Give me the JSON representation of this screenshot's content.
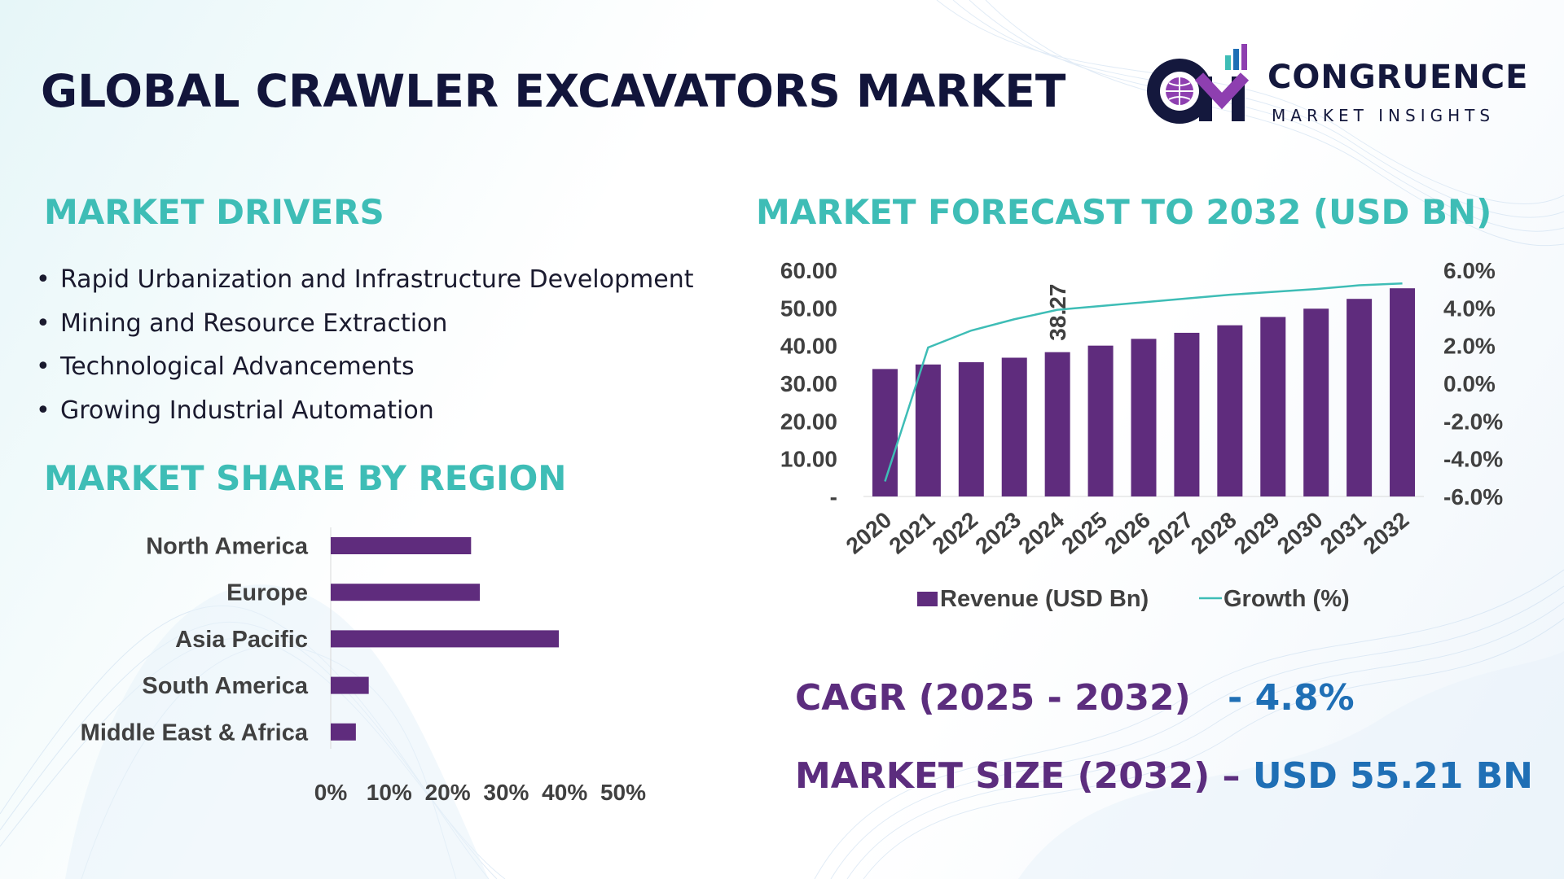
{
  "header": {
    "title": "GLOBAL CRAWLER EXCAVATORS MARKET"
  },
  "logo": {
    "name": "CONGRUENCE",
    "tagline": "MARKET INSIGHTS",
    "monogram": "CM"
  },
  "drivers": {
    "heading": "MARKET DRIVERS",
    "bullet": "•",
    "items": [
      "Rapid Urbanization and Infrastructure Development",
      "Mining and Resource Extraction",
      "Technological Advancements",
      "Growing Industrial Automation"
    ]
  },
  "region": {
    "heading": "MARKET SHARE BY REGION"
  },
  "forecast": {
    "heading": "MARKET FORECAST TO 2032 (USD BN)"
  },
  "stats": {
    "cagr_label": "CAGR (2025 - 2032)",
    "cagr_value": "- 4.8%",
    "size_label": "MARKET SIZE (2032) –",
    "size_value": "USD 55.21 BN"
  },
  "colors": {
    "bar": "#5f2c7d",
    "line": "#3ebdb6",
    "heading": "#3ebdb6",
    "title": "#12153b",
    "value": "#1f6fb5"
  },
  "chart_data": [
    {
      "type": "bar",
      "orientation": "horizontal",
      "categories": [
        "North America",
        "Europe",
        "Asia Pacific",
        "South America",
        "Middle East & Africa"
      ],
      "values": [
        24,
        25.5,
        39,
        6.5,
        4.3
      ],
      "xlim": [
        0,
        50
      ],
      "xticks": [
        "0%",
        "10%",
        "20%",
        "30%",
        "40%",
        "50%"
      ],
      "grid": false
    },
    {
      "type": "bar",
      "categories": [
        "2020",
        "2021",
        "2022",
        "2023",
        "2024",
        "2025",
        "2026",
        "2027",
        "2028",
        "2029",
        "2030",
        "2031",
        "2032"
      ],
      "series": [
        {
          "name": "Revenue (USD Bn)",
          "type": "bar",
          "axis": "left",
          "values": [
            33.8,
            35.0,
            35.6,
            36.8,
            38.27,
            40.0,
            41.8,
            43.4,
            45.4,
            47.6,
            49.8,
            52.4,
            55.21
          ]
        },
        {
          "name": "Growth (%)",
          "type": "line",
          "axis": "right",
          "values": [
            -5.2,
            1.9,
            2.8,
            3.4,
            3.9,
            4.1,
            4.3,
            4.5,
            4.7,
            4.85,
            5.0,
            5.2,
            5.3
          ]
        }
      ],
      "ylim": [
        0,
        60
      ],
      "yticks": [
        "-",
        "10.00",
        "20.00",
        "30.00",
        "40.00",
        "50.00",
        "60.00"
      ],
      "y2lim": [
        -6,
        6
      ],
      "y2ticks": [
        "-6.0%",
        "-4.0%",
        "-2.0%",
        "0.0%",
        "2.0%",
        "4.0%",
        "6.0%"
      ],
      "data_labels": [
        {
          "category": "2024",
          "text": "38.27"
        }
      ],
      "legend": "bottom",
      "grid": false
    }
  ]
}
